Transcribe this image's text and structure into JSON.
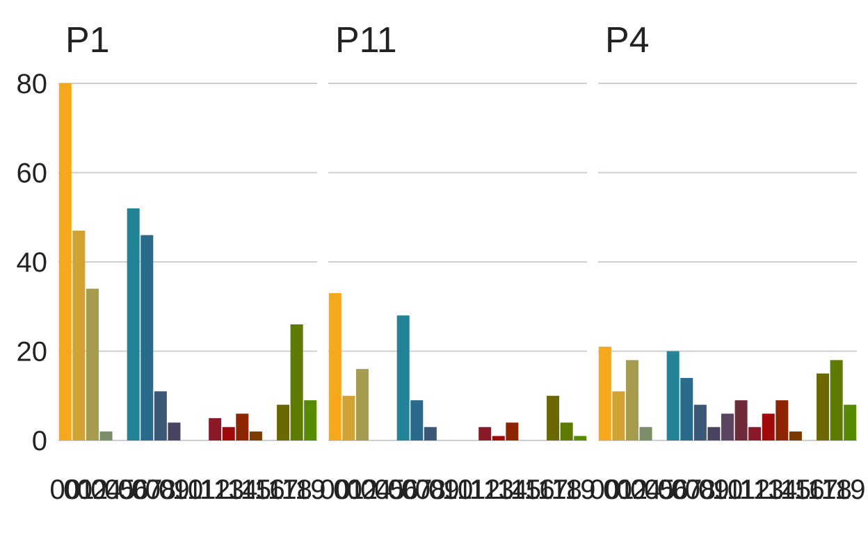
{
  "chart_data": {
    "type": "bar",
    "layout": "small-multiples",
    "title": "",
    "xlabel": "",
    "ylabel": "",
    "ylim": [
      0,
      80
    ],
    "y_ticks": [
      0,
      20,
      40,
      60,
      80
    ],
    "grid": "horizontal",
    "legend": "none",
    "categories": [
      "00",
      "01",
      "02",
      "04",
      "05",
      "06",
      "07",
      "08",
      "09",
      "10",
      "11",
      "12",
      "13",
      "14",
      "15",
      "16",
      "17",
      "18",
      "19"
    ],
    "category_colors": [
      "#F6A81C",
      "#D0A332",
      "#A69C50",
      "#788D68",
      "#4C8A7C",
      "#228496",
      "#2A6A8A",
      "#3B5876",
      "#4A4462",
      "#5A4460",
      "#6E2A38",
      "#8A1A28",
      "#A00A0A",
      "#8C2600",
      "#7A3A00",
      "#6A4A00",
      "#6A6800",
      "#5E7A00",
      "#568A00"
    ],
    "panels": [
      {
        "title": "P1",
        "values": [
          80,
          47,
          34,
          2,
          0,
          52,
          46,
          11,
          4,
          0,
          0,
          5,
          3,
          6,
          2,
          0,
          8,
          26,
          9
        ]
      },
      {
        "title": "P11",
        "values": [
          33,
          10,
          16,
          0,
          0,
          28,
          9,
          3,
          0,
          0,
          0,
          3,
          1,
          4,
          0,
          0,
          10,
          4,
          1
        ]
      },
      {
        "title": "P4",
        "values": [
          21,
          11,
          18,
          3,
          0,
          20,
          14,
          8,
          3,
          6,
          9,
          3,
          6,
          9,
          2,
          0,
          15,
          18,
          8
        ]
      }
    ]
  }
}
